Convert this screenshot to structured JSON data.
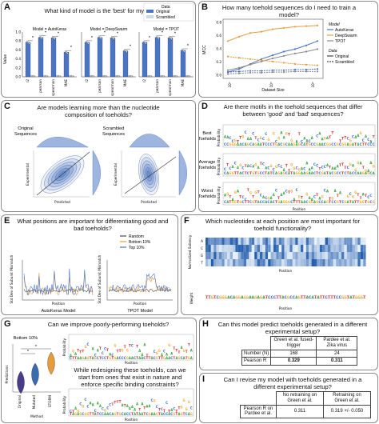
{
  "panels": {
    "A": {
      "label": "A",
      "title": "What kind of model is the 'best' for my data?",
      "legend": {
        "title": "Data",
        "items": [
          "Original",
          "Scrambled"
        ]
      },
      "groups": [
        {
          "title": "Model = AutoKeras",
          "metrics": [
            "r2",
            "pearson",
            "spearman",
            "MAE"
          ]
        },
        {
          "title": "Model = DeepSwarm",
          "metrics": [
            "r2",
            "pearson",
            "spearman",
            "MAE"
          ]
        },
        {
          "title": "Model = TPOT",
          "metrics": [
            "r2",
            "pearson",
            "spearman",
            "MAE"
          ]
        }
      ],
      "ylabel": "Value",
      "yticks": [
        "0.0",
        "0.2",
        "0.4",
        "0.6",
        "0.8",
        "1.0"
      ],
      "sig": "*",
      "colors": {
        "original": "#4a74c4",
        "scrambled": "#c9d8ec"
      }
    },
    "B": {
      "label": "B",
      "title": "How many toehold sequences do I need to train a model?",
      "ylabel": "MCC",
      "xlabel": "Dataset Size",
      "yticks": [
        "0.0",
        "0.2",
        "0.4",
        "0.6",
        "0.8"
      ],
      "xticks": [
        "10²",
        "10³",
        "10⁴"
      ],
      "legend": {
        "model_title": "Model",
        "models": [
          "AutoKeras",
          "DeepSwarm",
          "TPOT"
        ],
        "data_title": "Data",
        "data": [
          "Original",
          "Scrambled"
        ]
      },
      "colors": {
        "autokeras": "#4a74c4",
        "deepswarm": "#e59c3a",
        "tpot": "#8a8a8a"
      }
    },
    "C": {
      "label": "C",
      "title": "Are models learning more than the nucleotide composition of toeholds?",
      "left_caption": "Original Sequences",
      "right_caption": "Scrambled Sequences",
      "xlabel": "Predicted",
      "ylabel": "Experimental"
    },
    "D": {
      "label": "D",
      "title": "Are there motifs in the toehold sequences that differ between 'good' and 'bad' sequences?",
      "rows": [
        "Best Toeholds",
        "Average Toeholds",
        "Worst Toeholds"
      ],
      "ylabel": "Probability",
      "xlabel": "Position"
    },
    "E": {
      "label": "E",
      "title": "What positions are important for differentiating good and bad toeholds?",
      "legend": [
        "Random",
        "Bottom 10%",
        "Top 10%"
      ],
      "ylabel": "Std Dev of Subunit Mismatch",
      "xlabel": "Position",
      "left_model": "AutoKeras Model",
      "right_model": "TPOT Model",
      "colors": {
        "random": "#4a4a4a",
        "bottom": "#e59c3a",
        "top": "#4a74c4"
      }
    },
    "F": {
      "label": "F",
      "title": "Which nucleotides at each position are most important for toehold functionality?",
      "heat_ylabel": "Normalized Saliency",
      "heat_rows": [
        "A",
        "C",
        "G",
        "T"
      ],
      "xlabel": "Position",
      "logo_ylabel": "Weight"
    },
    "G": {
      "label": "G",
      "title1": "Can we improve poorly-performing toeholds?",
      "subtitle": "Bottom 10%",
      "violin_ylabel": "Predictions",
      "violin_xlabel": "Method",
      "violin_cats": [
        "Original",
        "Mutated",
        "STORM"
      ],
      "title2": "While redesigning these toeholds, can we start from ones that exist in nature and enforce specific binding constraints?",
      "logo_ylabel": "Probability",
      "logo_xlabel": "Position",
      "sig": "*"
    },
    "H": {
      "label": "H",
      "title": "Can this model predict toeholds generated in a different experimental setup?",
      "columns": [
        "",
        "Green et al. fused-trigger",
        "Pardee et al. Zika virus"
      ],
      "rows": [
        {
          "name": "Number (N)",
          "a": "168",
          "b": "24"
        },
        {
          "name": "Pearson R",
          "a": "0.329",
          "b": "0.311"
        }
      ]
    },
    "I": {
      "label": "I",
      "title": "Can I revise my model with toeholds generated in a different experimental setup?",
      "columns": [
        "",
        "No retraining on Green et al.",
        "Retraining on Green et al."
      ],
      "rows": [
        {
          "name": "Pearson R on Pardee et al.",
          "a": "0.311",
          "b": "0.319 +/- 0.050"
        }
      ]
    }
  }
}
